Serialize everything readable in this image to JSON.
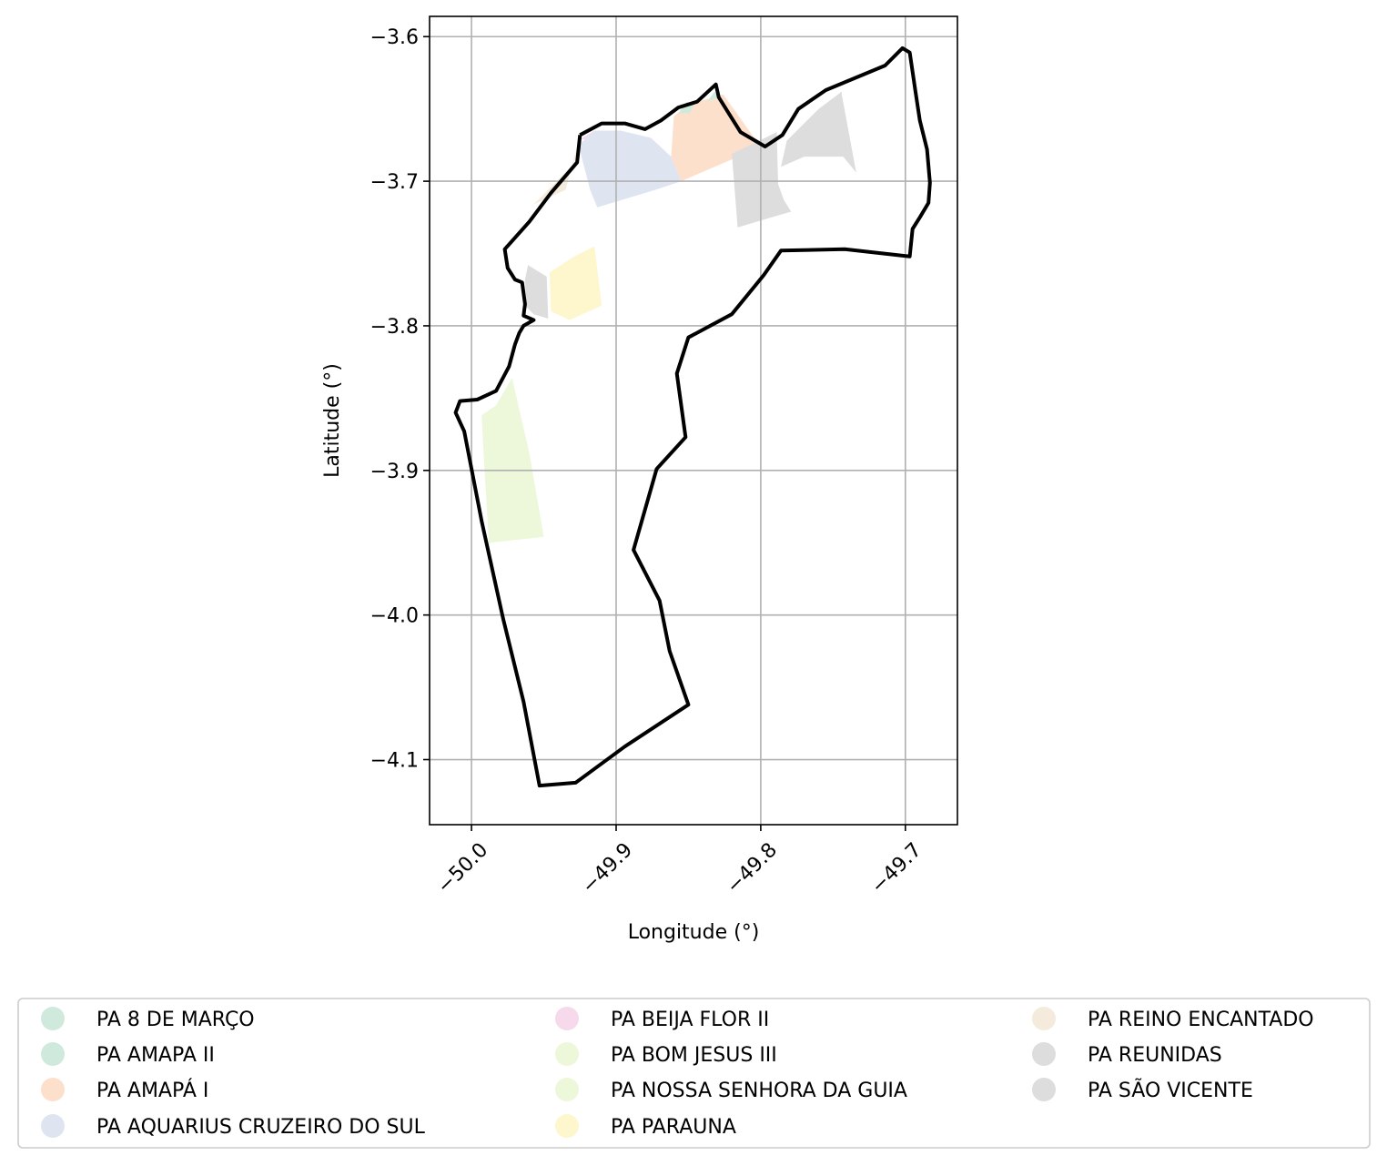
{
  "chart_data": {
    "type": "map",
    "xlabel": "Longitude (°)",
    "ylabel": "Latitude (°)",
    "xlim": [
      -50.029,
      -49.664
    ],
    "ylim": [
      -4.145,
      -3.586
    ],
    "x_ticks": [
      -50.0,
      -49.9,
      -49.8,
      -49.7
    ],
    "x_tick_labels": [
      "−50.0",
      "−49.9",
      "−49.8",
      "−49.7"
    ],
    "y_ticks": [
      -3.6,
      -3.7,
      -3.8,
      -3.9,
      -4.0,
      -4.1
    ],
    "y_tick_labels": [
      "−3.6",
      "−3.7",
      "−3.8",
      "−3.9",
      "−4.0",
      "−4.1"
    ],
    "grid": true,
    "legend_position": "bottom, below axes, 3 columns",
    "legend": [
      {
        "name": "PA 8 DE MARÇO",
        "color": "#cfeadc"
      },
      {
        "name": "PA AMAPA II",
        "color": "#cfeadc"
      },
      {
        "name": "PA AMAPÁ I",
        "color": "#fde0cc"
      },
      {
        "name": "PA AQUARIUS CRUZEIRO DO SUL",
        "color": "#dfe4f1"
      },
      {
        "name": "PA BEIJA FLOR II",
        "color": "#f6d9ea"
      },
      {
        "name": "PA BOM JESUS III",
        "color": "#edf7da"
      },
      {
        "name": "PA NOSSA SENHORA DA GUIA",
        "color": "#edf7da"
      },
      {
        "name": "PA PARAUNA",
        "color": "#fef6cc"
      },
      {
        "name": "PA REINO ENCANTADO",
        "color": "#f5ebdc"
      },
      {
        "name": "PA REUNIDAS",
        "color": "#dddddd"
      },
      {
        "name": "PA SÃO VICENTE",
        "color": "#dddddd"
      }
    ],
    "regions": [
      {
        "name": "PA REINO ENCANTADO",
        "polygon": [
          [
            -49.957,
            -3.716
          ],
          [
            -49.929,
            -3.688
          ],
          [
            -49.927,
            -3.676
          ],
          [
            -49.935,
            -3.706
          ]
        ]
      },
      {
        "name": "PA BEIJA FLOR II",
        "polygon": [
          [
            -49.925,
            -3.671
          ],
          [
            -49.915,
            -3.665
          ],
          [
            -49.921,
            -3.671
          ]
        ]
      },
      {
        "name": "PA AQUARIUS CRUZEIRO DO SUL",
        "polygon": [
          [
            -49.926,
            -3.675
          ],
          [
            -49.915,
            -3.665
          ],
          [
            -49.897,
            -3.665
          ],
          [
            -49.876,
            -3.67
          ],
          [
            -49.862,
            -3.683
          ],
          [
            -49.855,
            -3.7
          ],
          [
            -49.873,
            -3.706
          ],
          [
            -49.913,
            -3.718
          ],
          [
            -49.918,
            -3.706
          ]
        ]
      },
      {
        "name": "PA AMAPÁ I",
        "polygon": [
          [
            -49.862,
            -3.683
          ],
          [
            -49.855,
            -3.7
          ],
          [
            -49.818,
            -3.684
          ],
          [
            -49.801,
            -3.675
          ],
          [
            -49.818,
            -3.651
          ],
          [
            -49.826,
            -3.64
          ],
          [
            -49.85,
            -3.647
          ],
          [
            -49.86,
            -3.655
          ]
        ]
      },
      {
        "name": "PA 8 DE MARÇO",
        "polygon": [
          [
            -49.857,
            -3.653
          ],
          [
            -49.851,
            -3.645
          ],
          [
            -49.846,
            -3.647
          ],
          [
            -49.849,
            -3.653
          ]
        ]
      },
      {
        "name": "PA AMAPA II",
        "polygon": [
          [
            -49.837,
            -3.645
          ],
          [
            -49.832,
            -3.638
          ],
          [
            -49.829,
            -3.642
          ]
        ]
      },
      {
        "name": "PA REUNIDAS",
        "polygon": [
          [
            -49.82,
            -3.681
          ],
          [
            -49.803,
            -3.673
          ],
          [
            -49.789,
            -3.666
          ],
          [
            -49.788,
            -3.702
          ],
          [
            -49.784,
            -3.713
          ],
          [
            -49.779,
            -3.721
          ],
          [
            -49.796,
            -3.726
          ],
          [
            -49.816,
            -3.732
          ]
        ]
      },
      {
        "name": "PA SÃO VICENTE",
        "polygon": [
          [
            -49.782,
            -3.672
          ],
          [
            -49.76,
            -3.65
          ],
          [
            -49.744,
            -3.638
          ],
          [
            -49.744,
            -3.64
          ],
          [
            -49.734,
            -3.694
          ],
          [
            -49.743,
            -3.683
          ],
          [
            -49.755,
            -3.683
          ],
          [
            -49.77,
            -3.683
          ],
          [
            -49.786,
            -3.69
          ]
        ]
      },
      {
        "name": "PA REUNIDAS",
        "polygon": [
          [
            -49.961,
            -3.758
          ],
          [
            -49.948,
            -3.766
          ],
          [
            -49.947,
            -3.795
          ],
          [
            -49.957,
            -3.792
          ],
          [
            -49.962,
            -3.787
          ],
          [
            -49.963,
            -3.768
          ]
        ]
      },
      {
        "name": "PA PARAUNA",
        "polygon": [
          [
            -49.946,
            -3.763
          ],
          [
            -49.929,
            -3.752
          ],
          [
            -49.915,
            -3.745
          ],
          [
            -49.91,
            -3.786
          ],
          [
            -49.932,
            -3.796
          ],
          [
            -49.945,
            -3.79
          ]
        ]
      },
      {
        "name": "PA BOM JESUS III",
        "polygon": [
          [
            -49.983,
            -3.855
          ],
          [
            -49.972,
            -3.836
          ],
          [
            -49.96,
            -3.888
          ],
          [
            -49.95,
            -3.946
          ],
          [
            -49.988,
            -3.95
          ],
          [
            -49.991,
            -3.9
          ],
          [
            -49.993,
            -3.862
          ]
        ]
      }
    ],
    "boundary": [
      [
        -49.925,
        -3.668
      ],
      [
        -49.91,
        -3.66
      ],
      [
        -49.894,
        -3.66
      ],
      [
        -49.88,
        -3.664
      ],
      [
        -49.869,
        -3.658
      ],
      [
        -49.857,
        -3.649
      ],
      [
        -49.844,
        -3.645
      ],
      [
        -49.831,
        -3.633
      ],
      [
        -49.829,
        -3.642
      ],
      [
        -49.814,
        -3.666
      ],
      [
        -49.797,
        -3.676
      ],
      [
        -49.785,
        -3.668
      ],
      [
        -49.774,
        -3.65
      ],
      [
        -49.755,
        -3.637
      ],
      [
        -49.714,
        -3.62
      ],
      [
        -49.702,
        -3.608
      ],
      [
        -49.697,
        -3.611
      ],
      [
        -49.693,
        -3.638
      ],
      [
        -49.69,
        -3.658
      ],
      [
        -49.685,
        -3.678
      ],
      [
        -49.683,
        -3.701
      ],
      [
        -49.684,
        -3.715
      ],
      [
        -49.69,
        -3.725
      ],
      [
        -49.695,
        -3.733
      ],
      [
        -49.697,
        -3.752
      ],
      [
        -49.697,
        -3.752
      ],
      [
        -49.742,
        -3.747
      ],
      [
        -49.786,
        -3.748
      ],
      [
        -49.798,
        -3.765
      ],
      [
        -49.82,
        -3.792
      ],
      [
        -49.85,
        -3.808
      ],
      [
        -49.858,
        -3.833
      ],
      [
        -49.852,
        -3.877
      ],
      [
        -49.872,
        -3.899
      ],
      [
        -49.888,
        -3.955
      ],
      [
        -49.87,
        -3.99
      ],
      [
        -49.863,
        -4.025
      ],
      [
        -49.85,
        -4.062
      ],
      [
        -49.894,
        -4.091
      ],
      [
        -49.928,
        -4.116
      ],
      [
        -49.953,
        -4.118
      ],
      [
        -49.964,
        -4.06
      ],
      [
        -49.978,
        -4.003
      ],
      [
        -49.993,
        -3.935
      ],
      [
        -50.005,
        -3.873
      ],
      [
        -50.011,
        -3.86
      ],
      [
        -50.008,
        -3.852
      ],
      [
        -49.996,
        -3.851
      ],
      [
        -49.983,
        -3.845
      ],
      [
        -49.974,
        -3.828
      ],
      [
        -49.97,
        -3.813
      ],
      [
        -49.967,
        -3.805
      ],
      [
        -49.964,
        -3.8
      ],
      [
        -49.957,
        -3.796
      ],
      [
        -49.964,
        -3.793
      ],
      [
        -49.963,
        -3.785
      ],
      [
        -49.965,
        -3.77
      ],
      [
        -49.97,
        -3.768
      ],
      [
        -49.975,
        -3.76
      ],
      [
        -49.977,
        -3.747
      ],
      [
        -49.96,
        -3.728
      ],
      [
        -49.945,
        -3.708
      ],
      [
        -49.927,
        -3.687
      ],
      [
        -49.925,
        -3.668
      ]
    ]
  }
}
